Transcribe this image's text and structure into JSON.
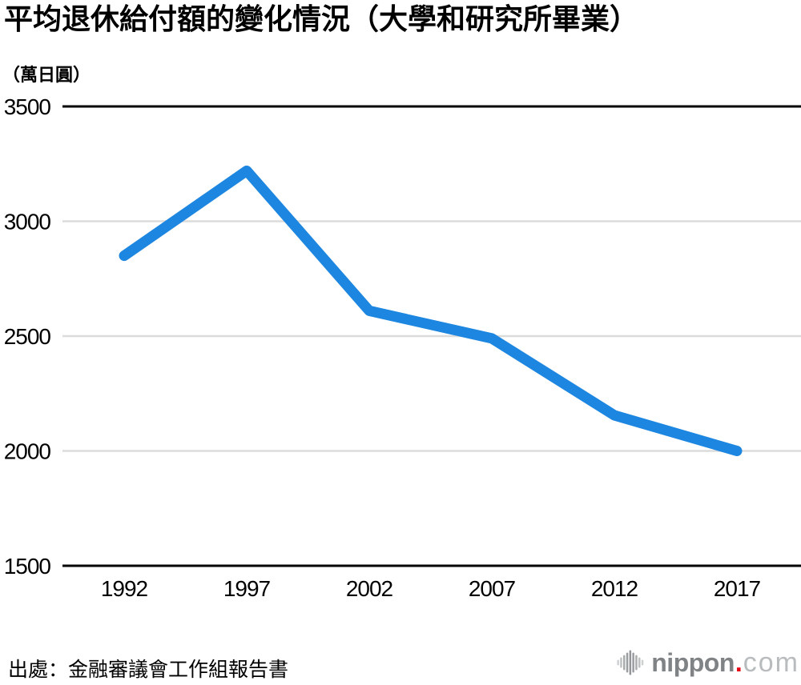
{
  "chart_data": {
    "type": "line",
    "title": "平均退休給付額的變化情況（大學和研究所畢業）",
    "ylabel_unit": "（萬日圓）",
    "xlabel": "",
    "categories": [
      "1992",
      "1997",
      "2002",
      "2007",
      "2012",
      "2017"
    ],
    "series": [
      {
        "values": [
          2850,
          3220,
          2610,
          2490,
          2155,
          2000
        ],
        "color": "#1d86e0"
      }
    ],
    "ylim": [
      1500,
      3500
    ],
    "y_ticks": [
      3500,
      3000,
      2500,
      2000,
      1500
    ],
    "emphasized_gridlines": [
      3500,
      1500
    ],
    "grid": "horizontal",
    "legend": "none",
    "colors": {
      "gridline": "#dbdbdb",
      "axis": "#000000",
      "tick_label": "#000000",
      "line": "#1d86e0"
    }
  },
  "footer": {
    "source": "出處：金融審議會工作組報告書",
    "logo": {
      "icon": "soundwave-icon",
      "name": "nippon",
      "dot": ".",
      "domain": "com",
      "name_color": "#808385",
      "dot_color": "#e60012",
      "domain_color": "#b9bcbe"
    }
  }
}
